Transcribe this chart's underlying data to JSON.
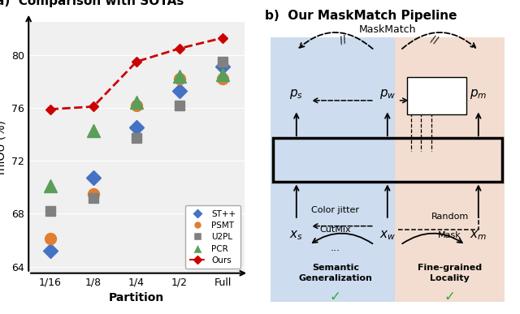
{
  "title_a": "a)  Comparison with SOTAs",
  "xlabel": "Partition",
  "ylabel": "mIOU (%)",
  "x_labels": [
    "1/16",
    "1/8",
    "1/4",
    "1/2",
    "Full"
  ],
  "x_vals": [
    0,
    1,
    2,
    3,
    4
  ],
  "ylim": [
    63.5,
    82.5
  ],
  "yticks": [
    64,
    68,
    72,
    76,
    80
  ],
  "ST++": [
    65.2,
    70.7,
    74.5,
    77.3,
    79.1
  ],
  "PSMT": [
    66.1,
    69.5,
    76.2,
    78.2,
    78.2
  ],
  "U2PL": [
    68.2,
    69.2,
    73.7,
    76.2,
    79.5
  ],
  "PCR": [
    70.1,
    74.3,
    76.4,
    78.4,
    78.5
  ],
  "Ours": [
    75.9,
    76.1,
    79.5,
    80.5,
    81.3
  ],
  "colors": {
    "ST++": "#4472c4",
    "PSMT": "#e07d2e",
    "U2PL": "#808080",
    "PCR": "#5a9e5a",
    "Ours": "#cc0000"
  },
  "bg_color": "#f0f0f0",
  "left_bg": "#cddcee",
  "right_bg": "#f2ddd0"
}
